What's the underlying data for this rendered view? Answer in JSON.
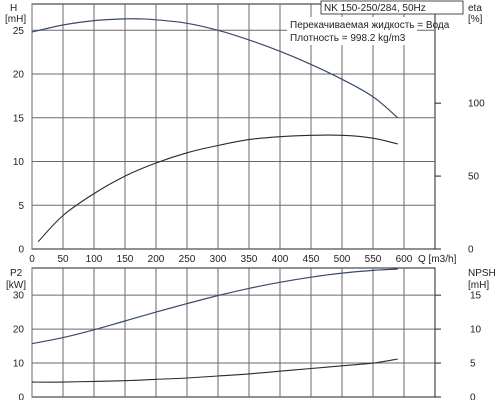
{
  "pump_label": "NK 150-250/284, 50Hz",
  "info_lines": [
    "Перекачиваемая жидкость = Вода",
    "Плотность = 998.2 kg/m3"
  ],
  "colors": {
    "head_curve": "#3a4a6e",
    "eta_curve": "#2a2a2a",
    "p2_curve": "#3a4a6e",
    "npsh_curve": "#2a2a2a",
    "grid": "#6a6a6a"
  },
  "chart_data": [
    {
      "type": "line",
      "title": "",
      "x_axis": {
        "label": "Q [m3/h]",
        "ticks": [
          0,
          50,
          100,
          150,
          200,
          250,
          300,
          350,
          400,
          450,
          500,
          550,
          600
        ],
        "range": [
          0,
          650
        ]
      },
      "left_axis": {
        "label": "H",
        "unit": "[mH]",
        "ticks": [
          0,
          5,
          10,
          15,
          20,
          25
        ],
        "range": [
          0,
          28
        ]
      },
      "right_axis": {
        "label": "eta",
        "unit": "[%]",
        "ticks": [
          0,
          50,
          100
        ],
        "range": [
          0,
          168
        ]
      },
      "grid": true,
      "series": [
        {
          "axis": "left",
          "x": [
            0,
            50,
            100,
            150,
            175,
            200,
            250,
            300,
            350,
            400,
            450,
            500,
            550,
            590
          ],
          "values": [
            24.8,
            25.6,
            26.1,
            26.3,
            26.3,
            26.2,
            25.8,
            25.0,
            23.9,
            22.6,
            21.1,
            19.4,
            17.4,
            15.0
          ]
        },
        {
          "axis": "right",
          "x": [
            10,
            50,
            100,
            150,
            200,
            250,
            300,
            350,
            400,
            450,
            500,
            550,
            590
          ],
          "values": [
            5,
            23,
            38,
            50,
            59,
            66,
            71,
            75,
            77,
            78,
            78,
            76,
            72
          ]
        }
      ]
    },
    {
      "type": "line",
      "title": "",
      "left_axis": {
        "label": "P2",
        "unit": "[kW]",
        "ticks": [
          0,
          10,
          20,
          30
        ],
        "range": [
          0,
          38
        ]
      },
      "right_axis": {
        "label": "NPSH",
        "unit": "[mH]",
        "ticks": [
          0,
          5,
          10,
          15
        ],
        "range": [
          0,
          19
        ]
      },
      "grid": true,
      "series": [
        {
          "axis": "left",
          "x": [
            0,
            50,
            100,
            150,
            200,
            250,
            300,
            350,
            400,
            450,
            500,
            550,
            590
          ],
          "values": [
            15.7,
            17.5,
            19.8,
            22.4,
            25.0,
            27.5,
            29.9,
            32.0,
            33.8,
            35.3,
            36.5,
            37.3,
            37.7
          ]
        },
        {
          "axis": "right",
          "x": [
            0,
            50,
            100,
            150,
            200,
            250,
            300,
            350,
            400,
            450,
            500,
            550,
            590
          ],
          "values": [
            2.2,
            2.2,
            2.3,
            2.4,
            2.6,
            2.8,
            3.1,
            3.4,
            3.8,
            4.2,
            4.6,
            5.0,
            5.6
          ]
        }
      ]
    }
  ]
}
